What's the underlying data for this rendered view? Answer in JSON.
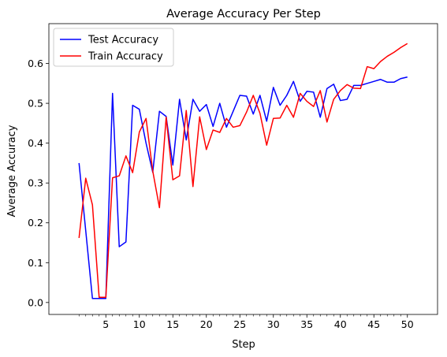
{
  "chart_data": {
    "type": "line",
    "title": "Average Accuracy Per Step",
    "xlabel": "Step",
    "ylabel": "Average Accuracy",
    "xlim": [
      -3.5,
      54.5
    ],
    "ylim": [
      -0.03,
      0.7
    ],
    "x_ticks_major": [
      5,
      10,
      15,
      20,
      25,
      30,
      35,
      40,
      45,
      50
    ],
    "x_tick_labels": [
      "5",
      "10",
      "15",
      "20",
      "25",
      "30",
      "35",
      "40",
      "45",
      "50"
    ],
    "x_ticks_minor_step": 1,
    "x_ticks_minor_range": [
      1,
      50
    ],
    "y_ticks": [
      0.0,
      0.1,
      0.2,
      0.3,
      0.4,
      0.5,
      0.6
    ],
    "y_tick_labels": [
      "0.0",
      "0.1",
      "0.2",
      "0.3",
      "0.4",
      "0.5",
      "0.6"
    ],
    "grid": false,
    "legend_position": "upper-left",
    "x": [
      1,
      2,
      3,
      4,
      5,
      6,
      7,
      8,
      9,
      10,
      11,
      12,
      13,
      14,
      15,
      16,
      17,
      18,
      19,
      20,
      21,
      22,
      23,
      24,
      25,
      26,
      27,
      28,
      29,
      30,
      31,
      32,
      33,
      34,
      35,
      36,
      37,
      38,
      39,
      40,
      41,
      42,
      43,
      44,
      45,
      46,
      47,
      48,
      49,
      50
    ],
    "series": [
      {
        "name": "Test Accuracy",
        "color": "#0000ff",
        "values": [
          0.35,
          0.18,
          0.01,
          0.01,
          0.01,
          0.525,
          0.14,
          0.152,
          0.495,
          0.485,
          0.4,
          0.327,
          0.48,
          0.467,
          0.345,
          0.51,
          0.408,
          0.51,
          0.48,
          0.497,
          0.442,
          0.5,
          0.44,
          0.48,
          0.52,
          0.518,
          0.473,
          0.52,
          0.455,
          0.54,
          0.495,
          0.52,
          0.555,
          0.505,
          0.53,
          0.528,
          0.465,
          0.537,
          0.548,
          0.507,
          0.51,
          0.545,
          0.545,
          0.55,
          0.555,
          0.56,
          0.553,
          0.553,
          0.562,
          0.566
        ]
      },
      {
        "name": "Train Accuracy",
        "color": "#ff0000",
        "values": [
          0.162,
          0.312,
          0.245,
          0.013,
          0.013,
          0.313,
          0.318,
          0.368,
          0.326,
          0.428,
          0.462,
          0.33,
          0.238,
          0.465,
          0.308,
          0.318,
          0.482,
          0.291,
          0.466,
          0.384,
          0.433,
          0.427,
          0.462,
          0.44,
          0.444,
          0.478,
          0.52,
          0.475,
          0.395,
          0.462,
          0.463,
          0.495,
          0.465,
          0.525,
          0.505,
          0.492,
          0.532,
          0.453,
          0.51,
          0.532,
          0.547,
          0.538,
          0.537,
          0.592,
          0.587,
          0.605,
          0.618,
          0.628,
          0.64,
          0.65
        ]
      }
    ]
  }
}
